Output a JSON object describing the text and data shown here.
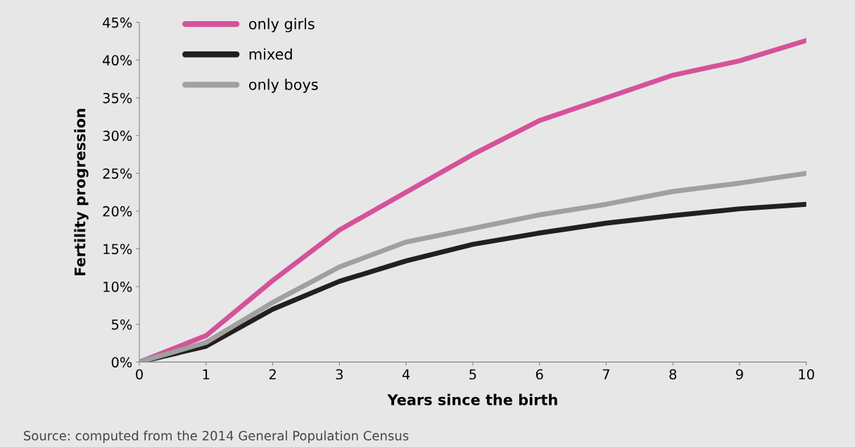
{
  "chart_data": {
    "type": "line",
    "xlabel": "Years since the birth",
    "ylabel": "Fertility progression",
    "x": [
      0,
      1,
      2,
      3,
      4,
      5,
      6,
      7,
      8,
      9,
      10
    ],
    "series": [
      {
        "name": "only girls",
        "color": "#d5529a",
        "values": [
          0,
          3.5,
          10.8,
          17.5,
          22.5,
          27.5,
          32,
          35,
          38,
          39.9,
          42.6
        ]
      },
      {
        "name": "mixed",
        "color": "#231f20",
        "values": [
          0,
          2.1,
          7,
          10.7,
          13.4,
          15.6,
          17.1,
          18.4,
          19.4,
          20.3,
          20.9
        ]
      },
      {
        "name": "only boys",
        "color": "#a0a0a0",
        "values": [
          0,
          2.6,
          7.9,
          12.6,
          15.9,
          17.7,
          19.5,
          20.9,
          22.6,
          23.7,
          25
        ]
      }
    ],
    "xlim": [
      0,
      10
    ],
    "xticks": [
      0,
      1,
      2,
      3,
      4,
      5,
      6,
      7,
      8,
      9,
      10
    ],
    "ylim": [
      0,
      45
    ],
    "yticks": [
      {
        "value": 0,
        "label": "0%"
      },
      {
        "value": 5,
        "label": "5%"
      },
      {
        "value": 10,
        "label": "10%"
      },
      {
        "value": 15,
        "label": "15%"
      },
      {
        "value": 20,
        "label": "20%"
      },
      {
        "value": 25,
        "label": "25%"
      },
      {
        "value": 30,
        "label": "30%"
      },
      {
        "value": 35,
        "label": "35%"
      },
      {
        "value": 40,
        "label": "40%"
      },
      {
        "value": 45,
        "label": "45%"
      }
    ],
    "grid": false,
    "legend": "top left",
    "marker": "none",
    "line_style": "solid",
    "annotations": [
      "Source: computed from the 2014 General Population Census"
    ]
  }
}
